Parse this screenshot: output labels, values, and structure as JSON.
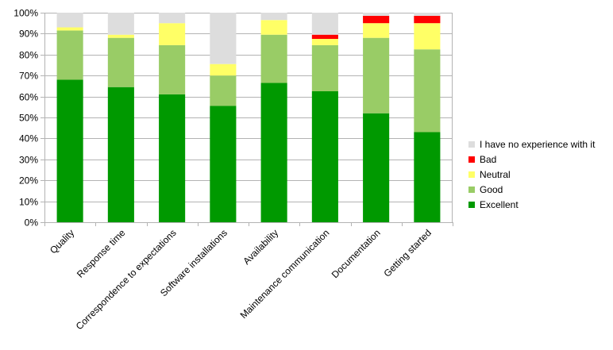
{
  "chart_data": {
    "type": "bar",
    "stacked": true,
    "percent_stacked": true,
    "title": "",
    "xlabel": "",
    "ylabel": "",
    "ylim": [
      0,
      100
    ],
    "y_ticks": [
      "0%",
      "10%",
      "20%",
      "30%",
      "40%",
      "50%",
      "60%",
      "70%",
      "80%",
      "90%",
      "100%"
    ],
    "grid": true,
    "legend_position": "right",
    "categories": [
      "Quality",
      "Response time",
      "Correspondence to expectations",
      "Software installations",
      "Availability",
      "Maintenance communication",
      "Documentation",
      "Getting started"
    ],
    "series": [
      {
        "name": "Excellent",
        "color": "#009900",
        "values": [
          68,
          64.5,
          61,
          55.5,
          66.5,
          62.5,
          52,
          43
        ]
      },
      {
        "name": "Good",
        "color": "#99cc66",
        "values": [
          23.5,
          23.5,
          23.5,
          14.5,
          23,
          22,
          36,
          39.5
        ]
      },
      {
        "name": "Neutral",
        "color": "#ffff66",
        "values": [
          1.5,
          1.5,
          10.5,
          5.5,
          7,
          3,
          7,
          12.5
        ]
      },
      {
        "name": "Bad",
        "color": "#ff0000",
        "values": [
          0,
          0,
          0,
          0,
          0,
          2,
          3.5,
          3.5
        ]
      },
      {
        "name": "I have no experience with it",
        "color": "#dddddd",
        "values": [
          7,
          10.5,
          5,
          24.5,
          3.5,
          10.5,
          1.5,
          1.5
        ]
      }
    ],
    "legend_order": [
      "I have no experience with it",
      "Bad",
      "Neutral",
      "Good",
      "Excellent"
    ]
  }
}
